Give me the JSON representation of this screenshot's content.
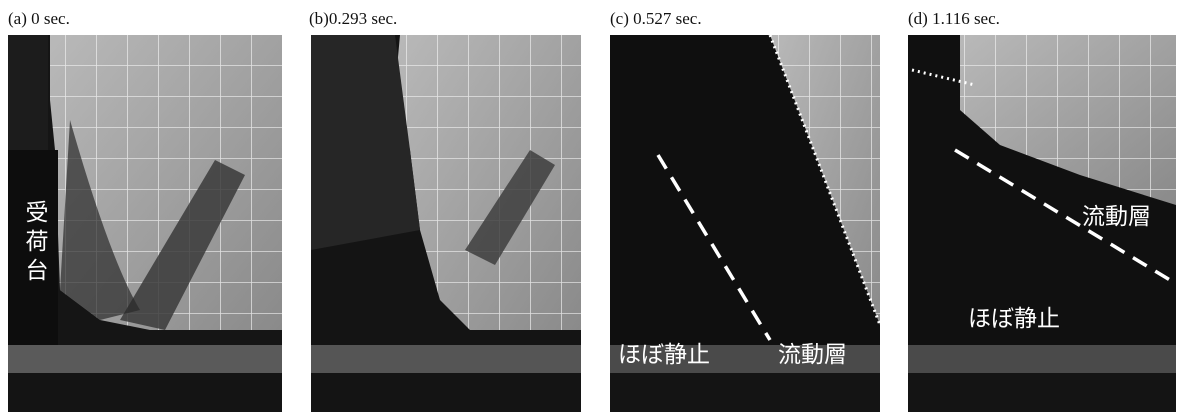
{
  "panels": [
    {
      "caption": "(a) 0 sec.",
      "labels": [
        "受荷台"
      ]
    },
    {
      "caption": "(b)0.293 sec.",
      "labels": []
    },
    {
      "caption": "(c) 0.527 sec.",
      "labels": [
        "ほぼ静止",
        "流動層"
      ]
    },
    {
      "caption": "(d) 1.116 sec.",
      "labels": [
        "流動層",
        "ほぼ静止"
      ]
    }
  ]
}
